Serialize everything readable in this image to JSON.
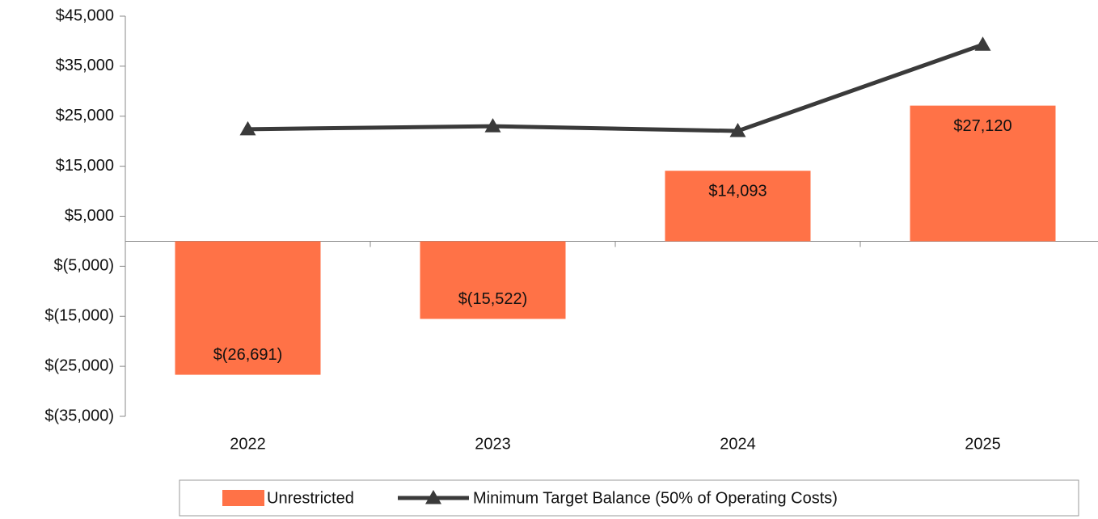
{
  "chart_data": {
    "type": "bar_line",
    "categories": [
      "2022",
      "2023",
      "2024",
      "2025"
    ],
    "series": [
      {
        "name": "Unrestricted",
        "type": "bar",
        "color": "#ff7247",
        "values": [
          -26691,
          -15522,
          14093,
          27120
        ],
        "value_labels": [
          "$(26,691)",
          "$(15,522)",
          "$14,093",
          "$27,120"
        ]
      },
      {
        "name": "Minimum Target Balance (50% of Operating Costs)",
        "type": "line",
        "color": "#3a3a3a",
        "values": [
          22400,
          23000,
          22050,
          39300
        ]
      }
    ],
    "ylim": [
      -35000,
      45000
    ],
    "yticks": [
      {
        "value": -35000,
        "label": "$(35,000)"
      },
      {
        "value": -25000,
        "label": "$(25,000)"
      },
      {
        "value": -15000,
        "label": "$(15,000)"
      },
      {
        "value": -5000,
        "label": "$(5,000)"
      },
      {
        "value": 5000,
        "label": "$5,000"
      },
      {
        "value": 15000,
        "label": "$15,000"
      },
      {
        "value": 25000,
        "label": "$25,000"
      },
      {
        "value": 35000,
        "label": "$35,000"
      },
      {
        "value": 45000,
        "label": "$45,000"
      }
    ],
    "legend": "bottom"
  }
}
